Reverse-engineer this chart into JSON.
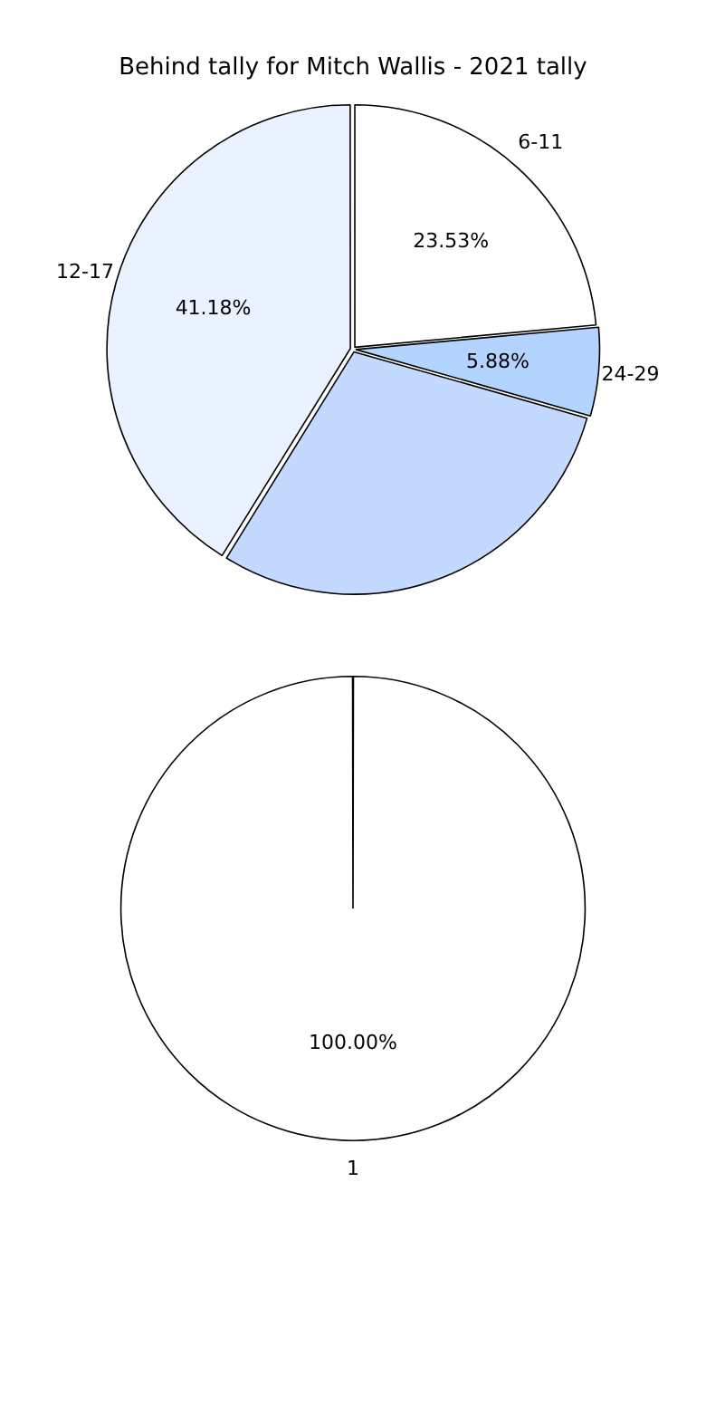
{
  "chart_data": [
    {
      "type": "pie",
      "title": "Behind tally for Mitch Wallis - 2021 tally",
      "categories": [
        "6-11",
        "24-29",
        null,
        "12-17"
      ],
      "values": [
        23.53,
        5.88,
        29.41,
        41.18
      ],
      "colors": [
        "#ffffff",
        "#b3d4ff",
        "#c4d9ff",
        "#eaf2ff"
      ],
      "value_labels": [
        "23.53%",
        "5.88%",
        null,
        "41.18%"
      ],
      "legend": false
    },
    {
      "type": "pie",
      "categories": [
        "1"
      ],
      "values": [
        100
      ],
      "colors": [
        "#ffffff"
      ],
      "value_labels": [
        "100.00%"
      ],
      "legend": false
    }
  ]
}
